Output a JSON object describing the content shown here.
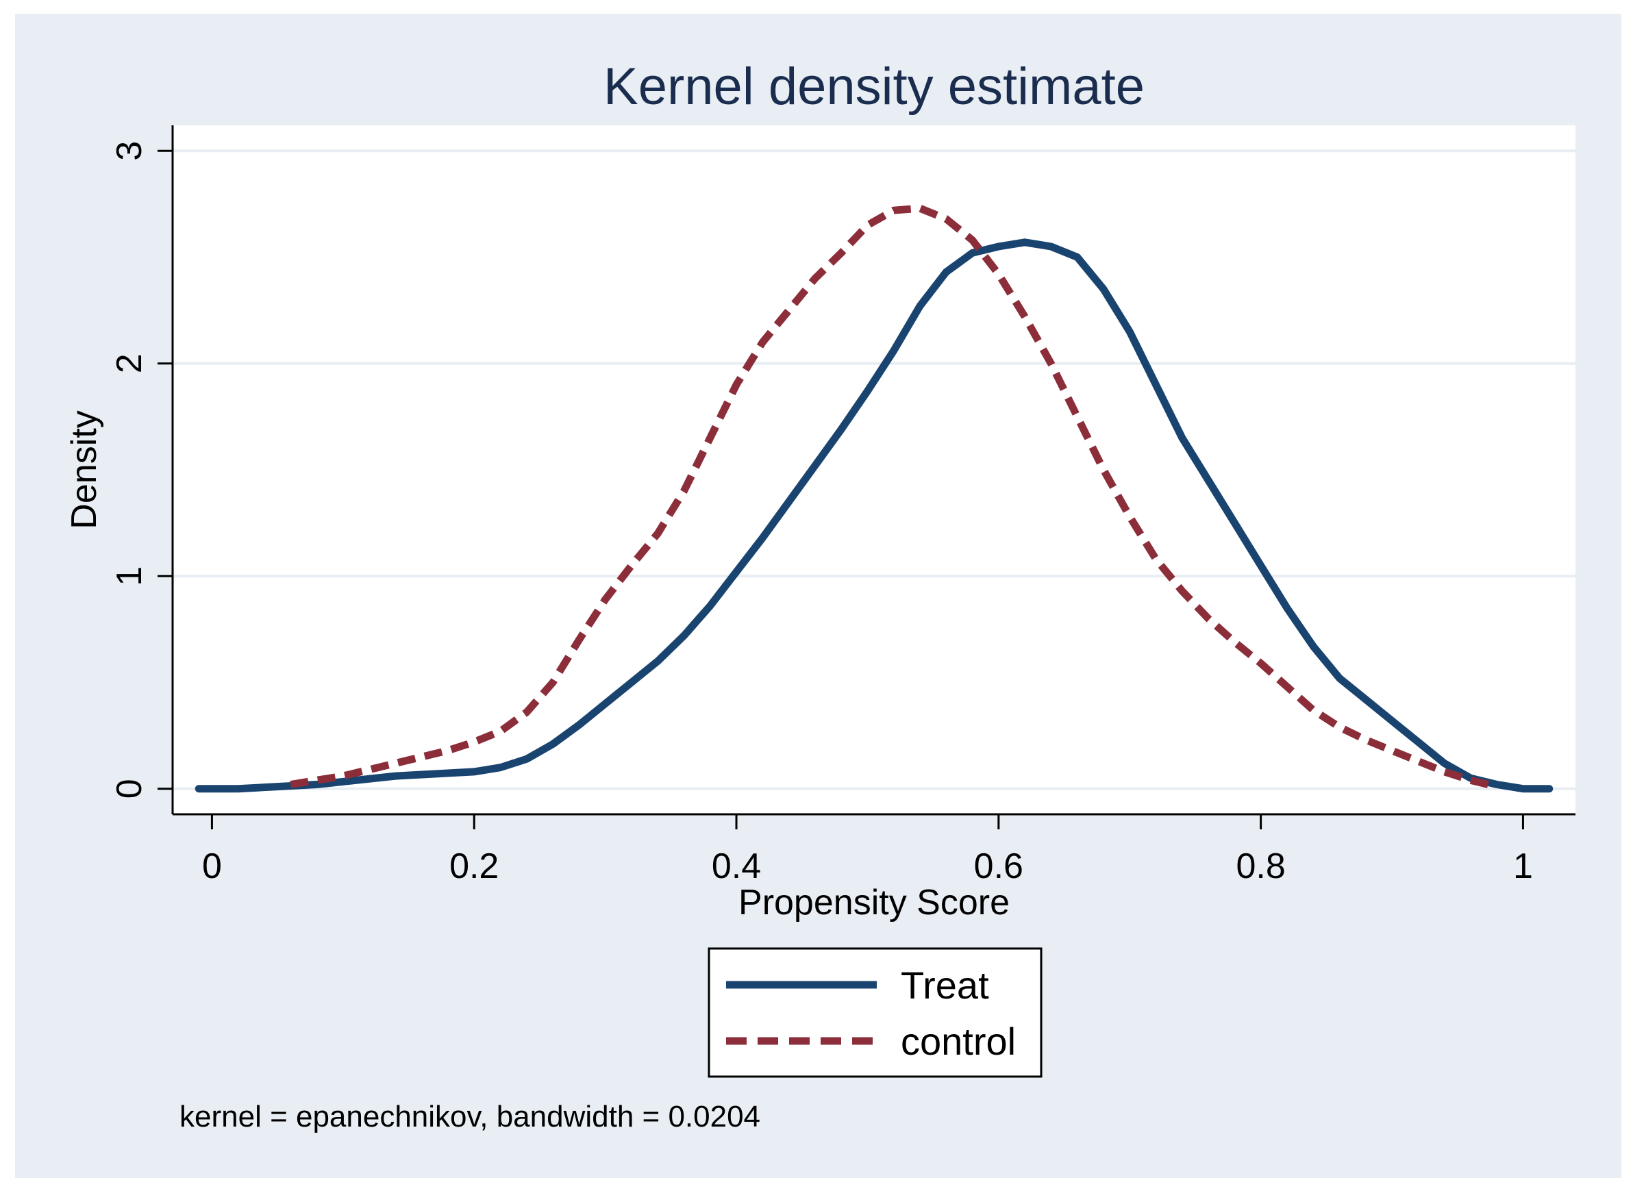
{
  "chart_data": {
    "type": "line",
    "title": "Kernel density estimate",
    "xlabel": "Propensity Score",
    "ylabel": "Density",
    "xlim": [
      -0.03,
      1.04
    ],
    "ylim": [
      -0.12,
      3.12
    ],
    "xticks": [
      0,
      0.2,
      0.4,
      0.6,
      0.8,
      1
    ],
    "xtick_labels": [
      "0",
      "0.2",
      "0.4",
      "0.6",
      "0.8",
      "1"
    ],
    "yticks": [
      0,
      1,
      2,
      3
    ],
    "ytick_labels": [
      "0",
      "1",
      "2",
      "3"
    ],
    "grid": true,
    "legend_position": "bottom-center",
    "note": "kernel = epanechnikov, bandwidth = 0.0204",
    "colors": {
      "outer_background": "#e8eef3",
      "plot_background": "#ffffff",
      "grid": "#e8eef3",
      "treat": "#1a4470",
      "control": "#8c2e3a"
    },
    "series": [
      {
        "name": "Treat",
        "style": "solid",
        "x": [
          -0.01,
          0.02,
          0.05,
          0.08,
          0.11,
          0.14,
          0.17,
          0.2,
          0.22,
          0.24,
          0.26,
          0.28,
          0.3,
          0.32,
          0.34,
          0.36,
          0.38,
          0.4,
          0.42,
          0.44,
          0.46,
          0.48,
          0.5,
          0.52,
          0.54,
          0.56,
          0.58,
          0.6,
          0.62,
          0.64,
          0.66,
          0.68,
          0.7,
          0.72,
          0.74,
          0.76,
          0.78,
          0.8,
          0.82,
          0.84,
          0.86,
          0.88,
          0.9,
          0.92,
          0.94,
          0.96,
          0.98,
          1.0,
          1.02
        ],
        "y": [
          0.0,
          0.0,
          0.01,
          0.02,
          0.04,
          0.06,
          0.07,
          0.08,
          0.1,
          0.14,
          0.21,
          0.3,
          0.4,
          0.5,
          0.6,
          0.72,
          0.86,
          1.02,
          1.18,
          1.35,
          1.52,
          1.69,
          1.87,
          2.06,
          2.27,
          2.43,
          2.52,
          2.55,
          2.57,
          2.55,
          2.5,
          2.35,
          2.15,
          1.9,
          1.65,
          1.45,
          1.25,
          1.05,
          0.85,
          0.67,
          0.52,
          0.42,
          0.32,
          0.22,
          0.12,
          0.05,
          0.02,
          0.0,
          0.0
        ],
        "y_display_note": "values as read from chart"
      },
      {
        "name": "control",
        "style": "dashed",
        "x": [
          0.06,
          0.08,
          0.1,
          0.12,
          0.14,
          0.16,
          0.18,
          0.2,
          0.22,
          0.24,
          0.26,
          0.28,
          0.3,
          0.32,
          0.34,
          0.36,
          0.38,
          0.4,
          0.42,
          0.44,
          0.46,
          0.48,
          0.5,
          0.52,
          0.54,
          0.56,
          0.58,
          0.6,
          0.62,
          0.64,
          0.66,
          0.68,
          0.7,
          0.72,
          0.74,
          0.76,
          0.78,
          0.8,
          0.82,
          0.84,
          0.86,
          0.88,
          0.9,
          0.92,
          0.94,
          0.96,
          0.98
        ],
        "y": [
          0.02,
          0.04,
          0.06,
          0.09,
          0.12,
          0.15,
          0.18,
          0.22,
          0.27,
          0.36,
          0.5,
          0.7,
          0.89,
          1.05,
          1.2,
          1.4,
          1.65,
          1.9,
          2.1,
          2.25,
          2.4,
          2.52,
          2.65,
          2.72,
          2.73,
          2.68,
          2.58,
          2.42,
          2.22,
          2.0,
          1.75,
          1.5,
          1.28,
          1.08,
          0.93,
          0.8,
          0.69,
          0.59,
          0.48,
          0.37,
          0.29,
          0.23,
          0.18,
          0.13,
          0.08,
          0.04,
          0.01
        ]
      }
    ]
  }
}
